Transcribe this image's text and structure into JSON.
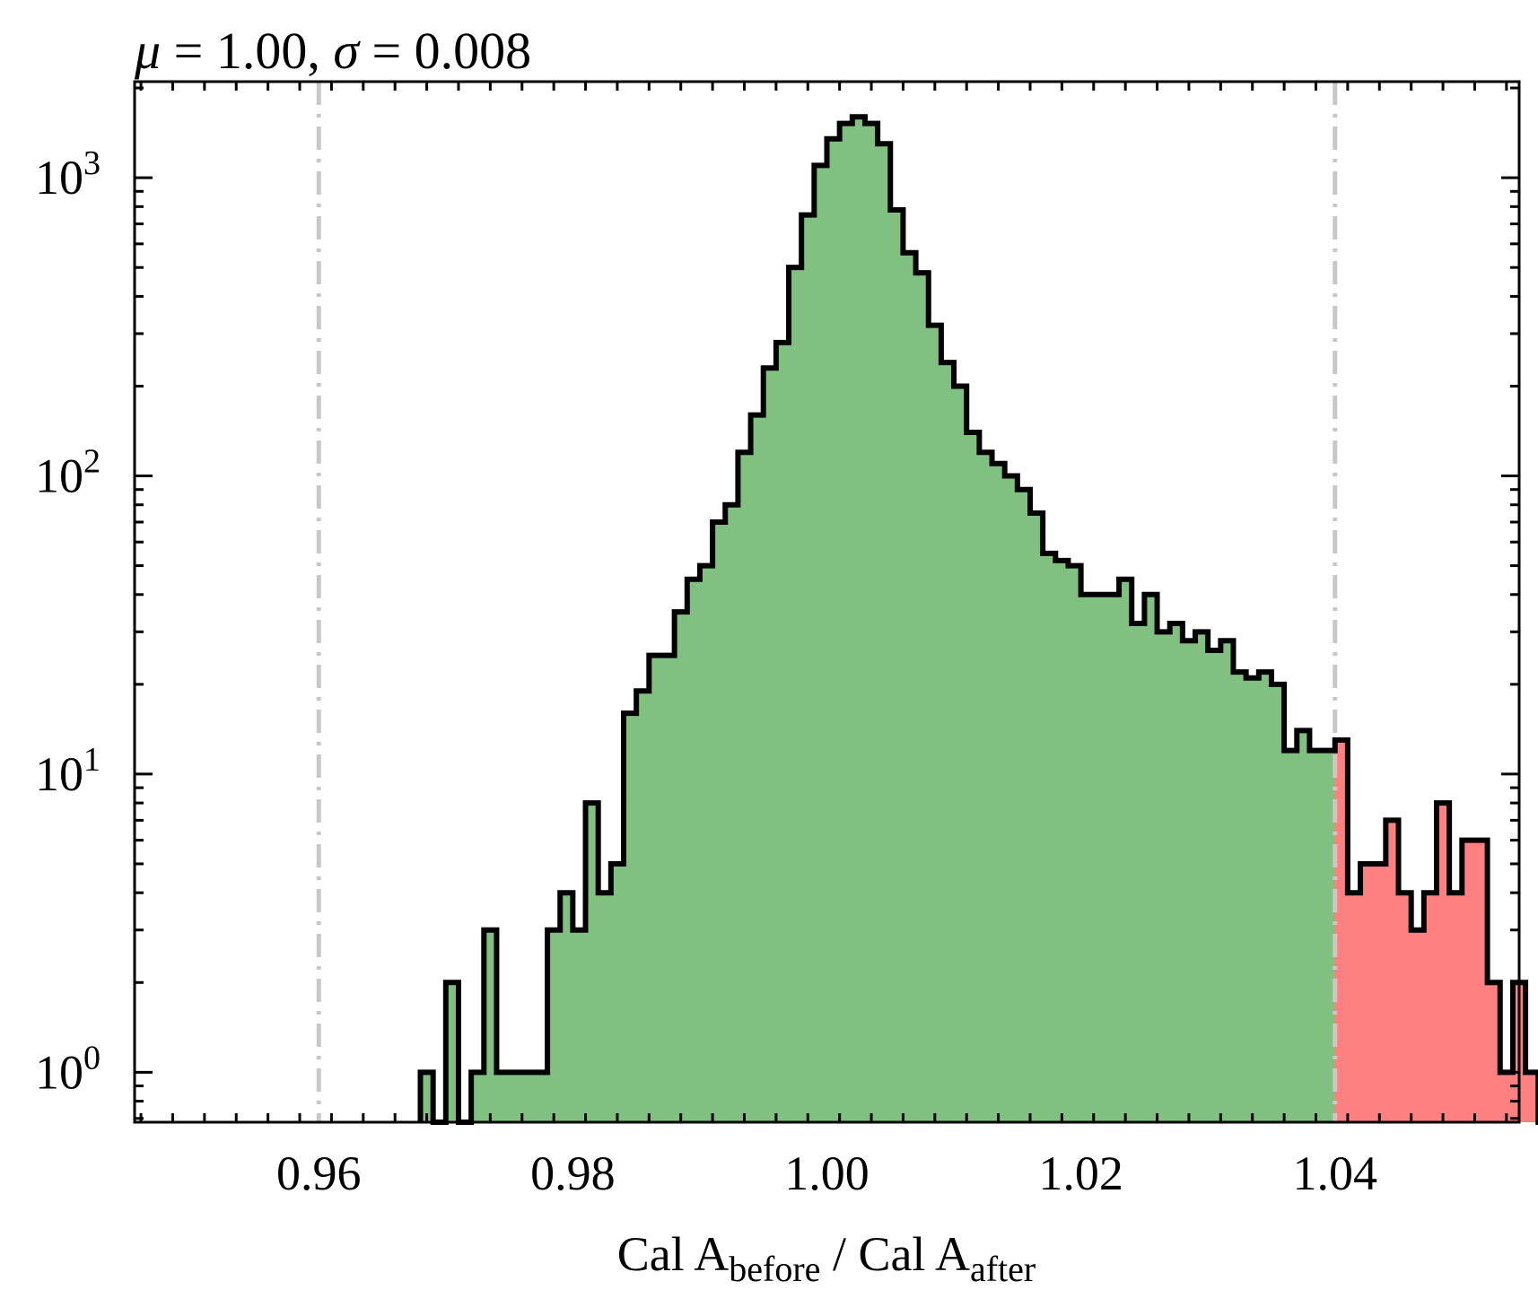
{
  "chart_data": {
    "type": "histogram",
    "title": "μ = 1.00, σ = 0.008",
    "title_parts": {
      "mu": "μ",
      "mu_value": " = 1.00, ",
      "sigma": "σ",
      "sigma_value": " = 0.008"
    },
    "xlabel": {
      "prefix": "Cal A",
      "sub1": "before",
      "mid": " / Cal A",
      "sub2": "after"
    },
    "ylabel": "",
    "y_scale": "log",
    "xlim": [
      0.9455,
      1.0545
    ],
    "ylim": [
      0.68,
      2100
    ],
    "x_ticks": [
      0.96,
      0.98,
      1.0,
      1.02,
      1.04
    ],
    "x_tick_labels": [
      "0.96",
      "0.98",
      "1.00",
      "1.02",
      "1.04"
    ],
    "y_ticks": [
      1,
      10,
      100,
      1000
    ],
    "y_tick_labels": [
      {
        "base": "10",
        "exp": "0"
      },
      {
        "base": "10",
        "exp": "1"
      },
      {
        "base": "10",
        "exp": "2"
      },
      {
        "base": "10",
        "exp": "3"
      }
    ],
    "threshold_lines": [
      0.96,
      1.04
    ],
    "bin_start": 0.968,
    "bin_width": 0.001,
    "counts": [
      1,
      0,
      2,
      0,
      1,
      3,
      1,
      1,
      1,
      1,
      3,
      4,
      3,
      8,
      4,
      5,
      16,
      19,
      25,
      25,
      35,
      45,
      50,
      70,
      80,
      120,
      160,
      230,
      280,
      500,
      750,
      1100,
      1350,
      1520,
      1600,
      1520,
      1300,
      780,
      560,
      480,
      320,
      240,
      200,
      140,
      120,
      110,
      100,
      90,
      75,
      55,
      52,
      50,
      40,
      40,
      40,
      45,
      32,
      40,
      30,
      32,
      28,
      30,
      26,
      28,
      22,
      21,
      22,
      20,
      12,
      14,
      12,
      12,
      13,
      4,
      5,
      5,
      7,
      4,
      3,
      4,
      8,
      4,
      6,
      6,
      2,
      1,
      2,
      1,
      0,
      1
    ],
    "series": [
      {
        "name": "",
        "range": "within ±0.04",
        "color": "#80c080"
      },
      {
        "name": "",
        "range": "outside ±0.04",
        "color": "#ff8080"
      }
    ],
    "grid": false,
    "colors": {
      "inside": "#80c080",
      "outside": "#ff8080",
      "outline": "#000000",
      "threshold": "#c8c8c8"
    }
  }
}
